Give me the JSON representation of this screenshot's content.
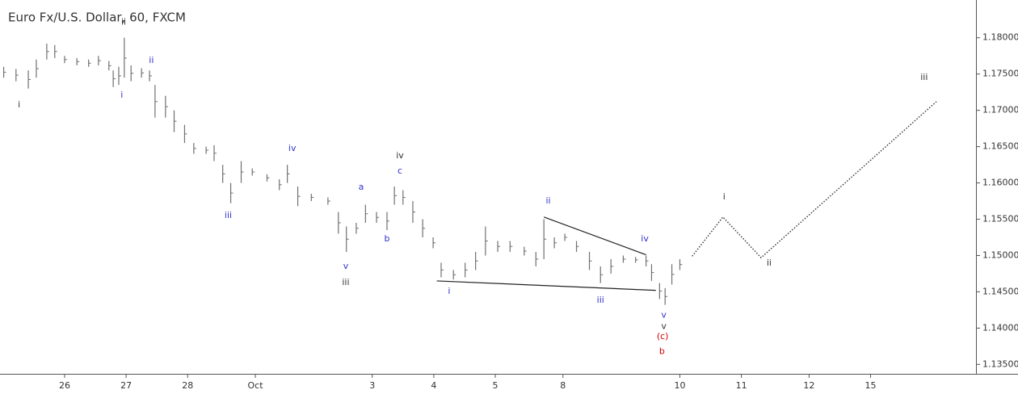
{
  "chart_data": {
    "type": "ohlc",
    "title": "Euro Fx/U.S. Dollar, 60, FXCM",
    "color": "#707070",
    "x": [
      -0.99,
      -0.79,
      -0.59,
      -0.46,
      -0.29,
      -0.16,
      0,
      0.2,
      0.39,
      0.55,
      0.72,
      0.79,
      0.88,
      0.97,
      1.08,
      1.25,
      1.38,
      1.47,
      1.64,
      1.78,
      1.95,
      2.1,
      2.3,
      2.43,
      2.57,
      2.7,
      2.87,
      3.05,
      3.29,
      3.49,
      3.62,
      3.79,
      4.01,
      4.28,
      4.45,
      4.58,
      4.74,
      4.89,
      5.07,
      5.24,
      5.36,
      5.5,
      5.66,
      5.82,
      5.99,
      6.12,
      6.32,
      6.51,
      6.68,
      6.84,
      7.04,
      7.24,
      7.47,
      7.66,
      7.79,
      7.96,
      8.13,
      8.32,
      8.53,
      8.71,
      8.88,
      9.08,
      9.28,
      9.45,
      9.54,
      9.67,
      9.76,
      9.87,
      10.0
    ],
    "high": [
      1.176,
      1.1757,
      1.1755,
      1.177,
      1.1792,
      1.179,
      1.1775,
      1.1772,
      1.177,
      1.1775,
      1.1768,
      1.1755,
      1.176,
      1.18,
      1.1762,
      1.1758,
      1.1755,
      1.1735,
      1.172,
      1.17,
      1.168,
      1.1655,
      1.165,
      1.1652,
      1.1625,
      1.16,
      1.163,
      1.162,
      1.1612,
      1.1605,
      1.1625,
      1.1595,
      1.1585,
      1.158,
      1.156,
      1.154,
      1.1545,
      1.157,
      1.156,
      1.156,
      1.1595,
      1.159,
      1.1575,
      1.155,
      1.1525,
      1.149,
      1.148,
      1.149,
      1.1505,
      1.154,
      1.152,
      1.152,
      1.1512,
      1.1505,
      1.155,
      1.1525,
      1.153,
      1.152,
      1.1505,
      1.1485,
      1.1495,
      1.15,
      1.1498,
      1.15,
      1.1488,
      1.1462,
      1.1455,
      1.1488,
      1.1495
    ],
    "low": [
      1.1745,
      1.174,
      1.173,
      1.1745,
      1.177,
      1.1772,
      1.1765,
      1.1762,
      1.176,
      1.1762,
      1.1755,
      1.1732,
      1.1735,
      1.1745,
      1.174,
      1.1745,
      1.174,
      1.169,
      1.169,
      1.167,
      1.1655,
      1.164,
      1.164,
      1.163,
      1.16,
      1.1572,
      1.16,
      1.161,
      1.1602,
      1.159,
      1.16,
      1.1568,
      1.1575,
      1.157,
      1.153,
      1.1505,
      1.153,
      1.1545,
      1.1545,
      1.1535,
      1.157,
      1.157,
      1.1545,
      1.1525,
      1.151,
      1.147,
      1.1467,
      1.147,
      1.148,
      1.15,
      1.1505,
      1.1505,
      1.15,
      1.1485,
      1.1495,
      1.151,
      1.152,
      1.1505,
      1.148,
      1.1462,
      1.1475,
      1.149,
      1.149,
      1.1485,
      1.1465,
      1.144,
      1.1432,
      1.146,
      1.148
    ],
    "close": [
      1.17525,
      1.17485,
      1.17425,
      1.17575,
      1.1781,
      1.1781,
      1.177,
      1.1767,
      1.1765,
      1.17685,
      1.17615,
      1.17435,
      1.17475,
      1.1772,
      1.1751,
      1.17515,
      1.17475,
      1.1712,
      1.1705,
      1.1685,
      1.16675,
      1.16475,
      1.1645,
      1.1641,
      1.16125,
      1.1586,
      1.1615,
      1.1615,
      1.1607,
      1.15975,
      1.16125,
      1.15815,
      1.158,
      1.1575,
      1.1545,
      1.15225,
      1.15375,
      1.15575,
      1.15525,
      1.15475,
      1.15825,
      1.158,
      1.156,
      1.15375,
      1.15175,
      1.148,
      1.14735,
      1.148,
      1.14925,
      1.152,
      1.15125,
      1.15125,
      1.1506,
      1.1495,
      1.15225,
      1.15175,
      1.1525,
      1.15125,
      1.14925,
      1.14735,
      1.1485,
      1.1495,
      1.1494,
      1.14925,
      1.14765,
      1.1451,
      1.14435,
      1.1474,
      1.14875
    ],
    "xlim": [
      -1.05,
      14.8
    ],
    "xticks": [
      {
        "value": 0,
        "label": "26"
      },
      {
        "value": 1,
        "label": "27"
      },
      {
        "value": 2,
        "label": "28"
      },
      {
        "value": 3.1,
        "label": "Oct"
      },
      {
        "value": 5,
        "label": "3"
      },
      {
        "value": 6,
        "label": "4"
      },
      {
        "value": 7,
        "label": "5"
      },
      {
        "value": 8.1,
        "label": "8"
      },
      {
        "value": 10,
        "label": "10"
      },
      {
        "value": 11,
        "label": "11"
      },
      {
        "value": 12.1,
        "label": "12"
      },
      {
        "value": 13.1,
        "label": "15"
      }
    ],
    "ylim": [
      1.1337,
      1.1852
    ],
    "yticks": [
      {
        "value": 1.135,
        "label": "1.13500"
      },
      {
        "value": 1.14,
        "label": "1.14000"
      },
      {
        "value": 1.145,
        "label": "1.14500"
      },
      {
        "value": 1.15,
        "label": "1.15000"
      },
      {
        "value": 1.155,
        "label": "1.15500"
      },
      {
        "value": 1.16,
        "label": "1.16000"
      },
      {
        "value": 1.165,
        "label": "1.16500"
      },
      {
        "value": 1.17,
        "label": "1.17000"
      },
      {
        "value": 1.175,
        "label": "1.17500"
      },
      {
        "value": 1.18,
        "label": "1.18000"
      }
    ],
    "lines": [
      {
        "x": [
          7.79,
          9.45
        ],
        "y": [
          1.1553,
          1.1501
        ],
        "style": "solid",
        "color": "#222222"
      },
      {
        "x": [
          6.05,
          9.61
        ],
        "y": [
          1.1465,
          1.1452
        ],
        "style": "solid",
        "color": "#222222"
      },
      {
        "x": [
          10.2,
          10.7,
          11.32,
          14.17
        ],
        "y": [
          1.1499,
          1.1553,
          1.1497,
          1.1712
        ],
        "style": "dotted",
        "color": "#333333"
      }
    ],
    "annotations": [
      {
        "text": "ii",
        "x": 0.96,
        "y": 1.18212,
        "color": "#333333"
      },
      {
        "text": "i",
        "x": -0.74,
        "y": 1.17075,
        "color": "#333333"
      },
      {
        "text": "i",
        "x": 0.93,
        "y": 1.17209,
        "color": "#3333cc"
      },
      {
        "text": "ii",
        "x": 1.41,
        "y": 1.17688,
        "color": "#3333cc"
      },
      {
        "text": "iii",
        "x": 2.66,
        "y": 1.15549,
        "color": "#3333cc"
      },
      {
        "text": "iv",
        "x": 3.7,
        "y": 1.16474,
        "color": "#3333cc"
      },
      {
        "text": "a",
        "x": 4.82,
        "y": 1.15939,
        "color": "#3333cc"
      },
      {
        "text": "b",
        "x": 5.24,
        "y": 1.15226,
        "color": "#3333cc"
      },
      {
        "text": "v",
        "x": 4.57,
        "y": 1.14848,
        "color": "#3333cc"
      },
      {
        "text": "iii",
        "x": 4.57,
        "y": 1.14625,
        "color": "#333333"
      },
      {
        "text": "iv",
        "x": 5.45,
        "y": 1.16374,
        "color": "#333333"
      },
      {
        "text": "c",
        "x": 5.45,
        "y": 1.16162,
        "color": "#3333cc"
      },
      {
        "text": "i",
        "x": 6.25,
        "y": 1.14502,
        "color": "#3333cc"
      },
      {
        "text": "ii",
        "x": 7.86,
        "y": 1.1575,
        "color": "#3333cc"
      },
      {
        "text": "iii",
        "x": 8.71,
        "y": 1.1438,
        "color": "#3333cc"
      },
      {
        "text": "iv",
        "x": 9.43,
        "y": 1.15226,
        "color": "#3333cc"
      },
      {
        "text": "v",
        "x": 9.74,
        "y": 1.14179,
        "color": "#3333cc"
      },
      {
        "text": "v",
        "x": 9.74,
        "y": 1.14023,
        "color": "#333333"
      },
      {
        "text": "(c)",
        "x": 9.72,
        "y": 1.13879,
        "color": "#cc0000"
      },
      {
        "text": "b",
        "x": 9.71,
        "y": 1.13678,
        "color": "#cc0000"
      },
      {
        "text": "i",
        "x": 10.72,
        "y": 1.15806,
        "color": "#333333"
      },
      {
        "text": "ii",
        "x": 11.45,
        "y": 1.14892,
        "color": "#333333"
      },
      {
        "text": "iii",
        "x": 13.97,
        "y": 1.17454,
        "color": "#333333"
      }
    ]
  }
}
